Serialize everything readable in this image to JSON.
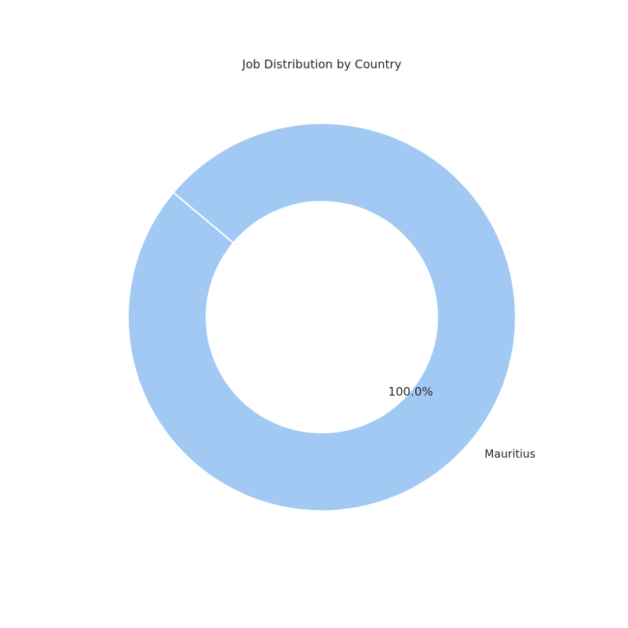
{
  "chart_data": {
    "type": "pie",
    "title": "Job Distribution by Country",
    "donut": true,
    "slices": [
      {
        "label": "Mauritius",
        "value": 100.0,
        "percent_label": "100.0%",
        "color": "#a1c9f4"
      }
    ],
    "edge_color": "#ffffff",
    "start_angle_deg": 140
  }
}
